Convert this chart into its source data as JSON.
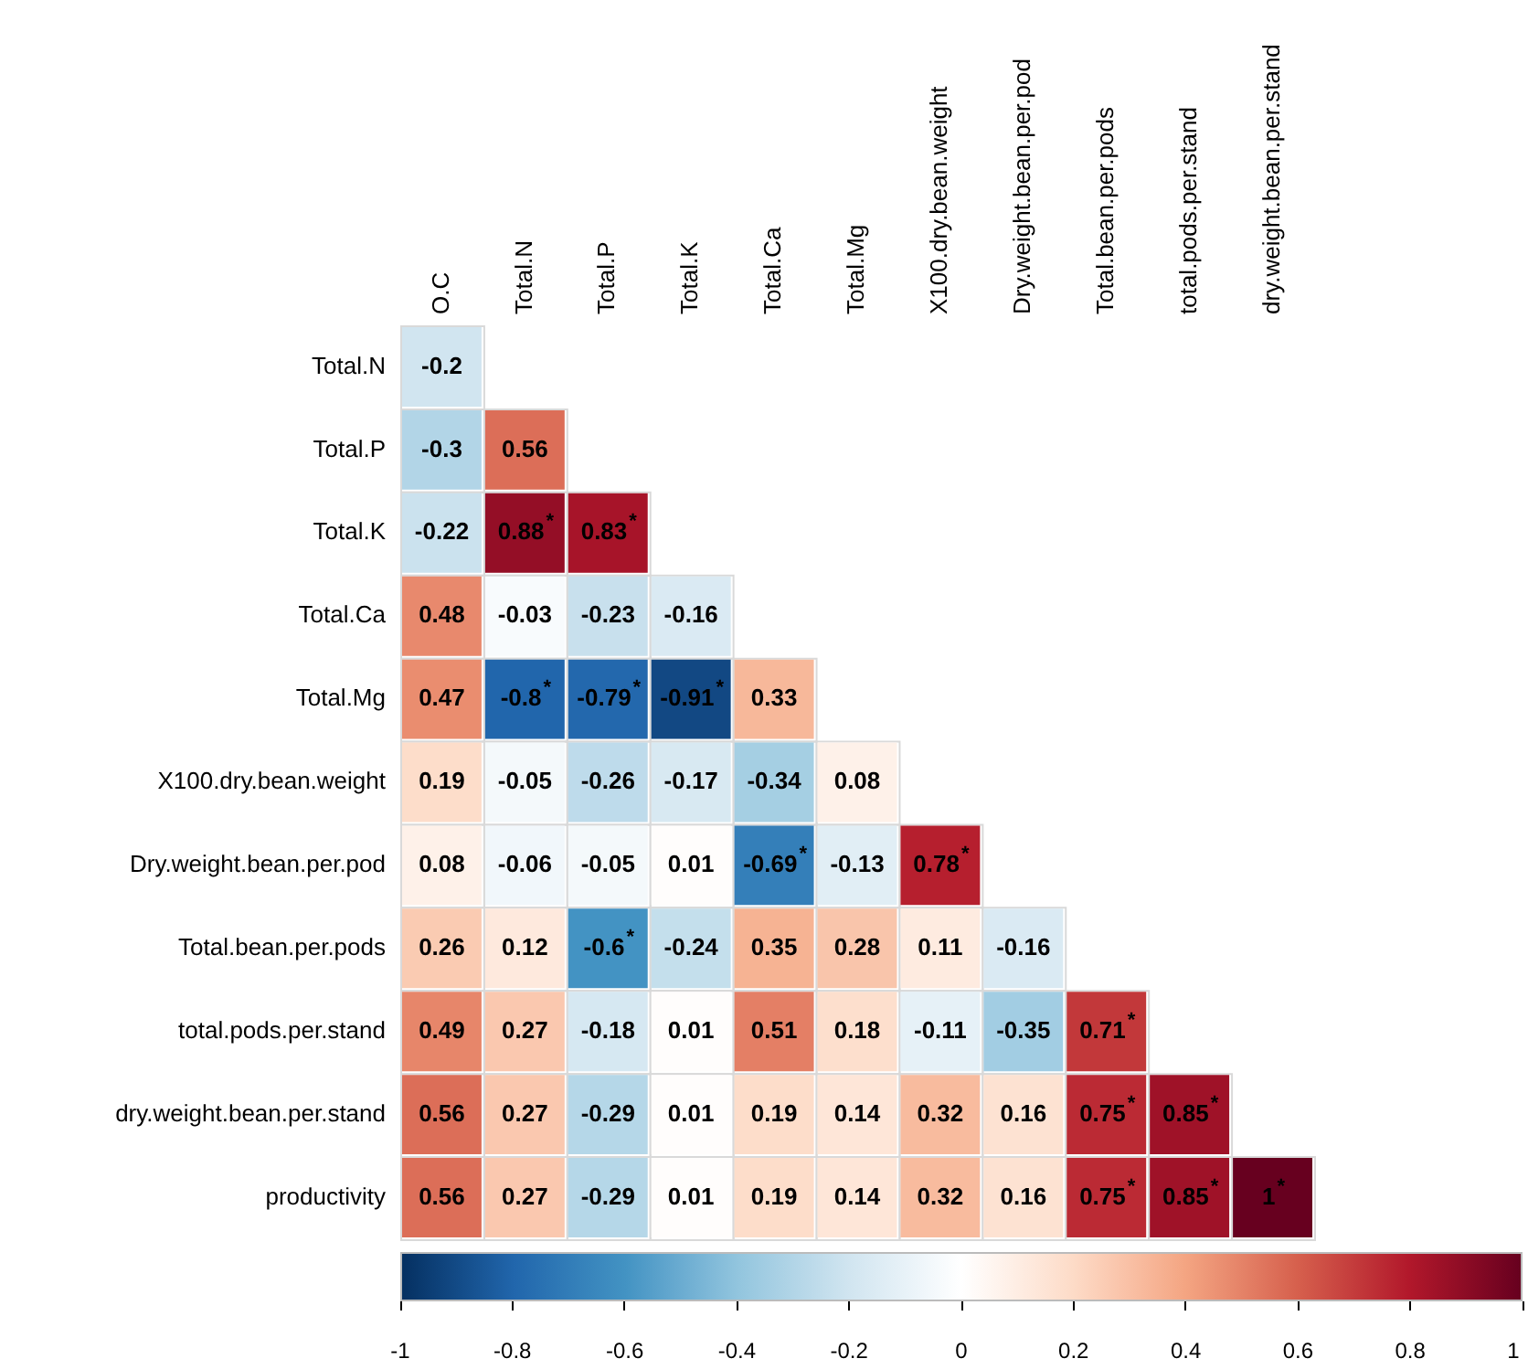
{
  "chart_data": {
    "type": "heatmap",
    "categories": [
      "O.C",
      "Total.N",
      "Total.P",
      "Total.K",
      "Total.Ca",
      "Total.Mg",
      "X100.dry.bean.weight",
      "Dry.weight.bean.per.pod",
      "Total.bean.per.pods",
      "total.pods.per.stand",
      "dry.weight.bean.per.stand"
    ],
    "y_categories": [
      "Total.N",
      "Total.P",
      "Total.K",
      "Total.Ca",
      "Total.Mg",
      "X100.dry.bean.weight",
      "Dry.weight.bean.per.pod",
      "Total.bean.per.pods",
      "total.pods.per.stand",
      "dry.weight.bean.per.stand",
      "productivity"
    ],
    "cells": [
      [
        -0.2,
        null,
        null,
        null,
        null,
        null,
        null,
        null,
        null,
        null,
        null
      ],
      [
        -0.3,
        0.56,
        null,
        null,
        null,
        null,
        null,
        null,
        null,
        null,
        null
      ],
      [
        -0.22,
        0.88,
        0.83,
        null,
        null,
        null,
        null,
        null,
        null,
        null,
        null
      ],
      [
        0.48,
        -0.03,
        -0.23,
        -0.16,
        null,
        null,
        null,
        null,
        null,
        null,
        null
      ],
      [
        0.47,
        -0.8,
        -0.79,
        -0.91,
        0.33,
        null,
        null,
        null,
        null,
        null,
        null
      ],
      [
        0.19,
        -0.05,
        -0.26,
        -0.17,
        -0.34,
        0.08,
        null,
        null,
        null,
        null,
        null
      ],
      [
        0.08,
        -0.06,
        -0.05,
        0.01,
        -0.69,
        -0.13,
        0.78,
        null,
        null,
        null,
        null
      ],
      [
        0.26,
        0.12,
        -0.6,
        -0.24,
        0.35,
        0.28,
        0.11,
        -0.16,
        null,
        null,
        null
      ],
      [
        0.49,
        0.27,
        -0.18,
        0.01,
        0.51,
        0.18,
        -0.11,
        -0.35,
        0.71,
        null,
        null
      ],
      [
        0.56,
        0.27,
        -0.29,
        0.01,
        0.19,
        0.14,
        0.32,
        0.16,
        0.75,
        0.85,
        null
      ],
      [
        0.56,
        0.27,
        -0.29,
        0.01,
        0.19,
        0.14,
        0.32,
        0.16,
        0.75,
        0.85,
        1
      ]
    ],
    "cell_labels": [
      [
        "-0.2",
        null,
        null,
        null,
        null,
        null,
        null,
        null,
        null,
        null,
        null
      ],
      [
        "-0.3",
        "0.56",
        null,
        null,
        null,
        null,
        null,
        null,
        null,
        null,
        null
      ],
      [
        "-0.22",
        "0.88$^{*}$",
        "0.83$^{*}$",
        null,
        null,
        null,
        null,
        null,
        null,
        null,
        null
      ],
      [
        "0.48",
        "-0.03",
        "-0.23",
        "-0.16",
        null,
        null,
        null,
        null,
        null,
        null,
        null
      ],
      [
        "0.47",
        "-0.8$^{*}$",
        "-0.79$^{*}$",
        "-0.91$^{*}$",
        "0.33",
        null,
        null,
        null,
        null,
        null,
        null
      ],
      [
        "0.19",
        "-0.05",
        "-0.26",
        "-0.17",
        "-0.34",
        "0.08",
        null,
        null,
        null,
        null,
        null
      ],
      [
        "0.08",
        "-0.06",
        "-0.05",
        "0.01",
        "-0.69$^{*}$",
        "-0.13",
        "0.78$^{*}$",
        null,
        null,
        null,
        null
      ],
      [
        "0.26",
        "0.12",
        "-0.6$^{*}$",
        "-0.24",
        "0.35",
        "0.28",
        "0.11",
        "-0.16",
        null,
        null,
        null
      ],
      [
        "0.49",
        "0.27",
        "-0.18",
        "0.01",
        "0.51",
        "0.18",
        "-0.11",
        "-0.35",
        "0.71$^{*}$",
        null,
        null
      ],
      [
        "0.56",
        "0.27",
        "-0.29",
        "0.01",
        "0.19",
        "0.14",
        "0.32",
        "0.16",
        "0.75$^{*}$",
        "0.85$^{*}$",
        null
      ],
      [
        "0.56",
        "0.27",
        "-0.29",
        "0.01",
        "0.19",
        "0.14",
        "0.32",
        "0.16",
        "0.75$^{*}$",
        "0.85$^{*}$",
        "1$^{*}$"
      ]
    ],
    "clim": [
      -1,
      1
    ],
    "cticks": [
      -1,
      -0.8,
      -0.6,
      -0.4,
      -0.2,
      0,
      0.2,
      0.4,
      0.6,
      0.8,
      1
    ],
    "legend": false
  }
}
